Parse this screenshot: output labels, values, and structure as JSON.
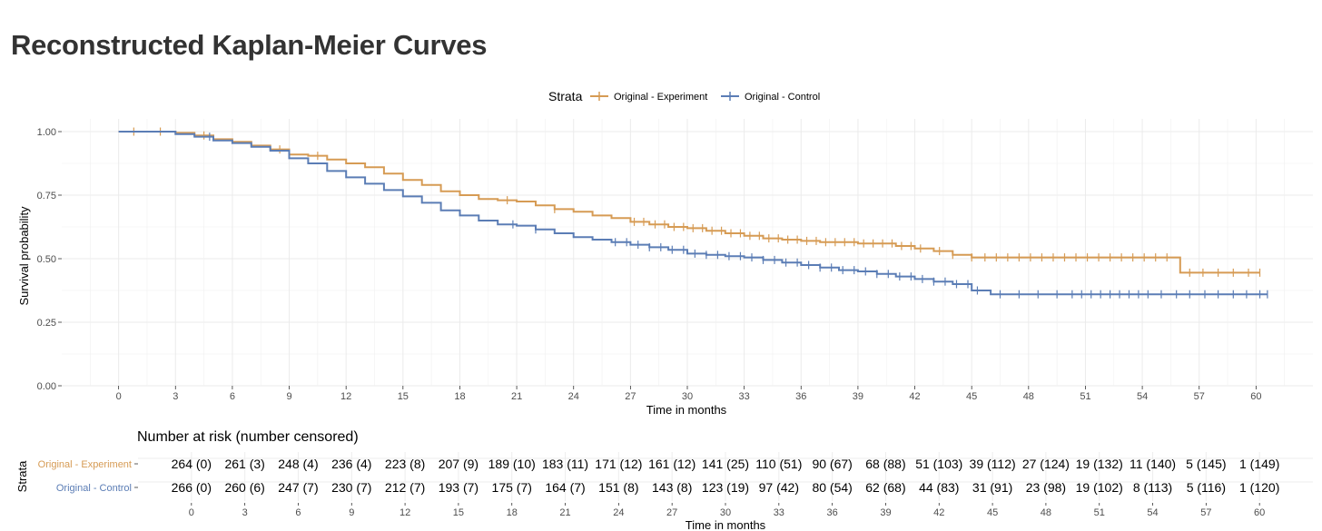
{
  "title": "Reconstructed Kaplan-Meier Curves",
  "chart_data": {
    "type": "line",
    "subtype": "kaplan-meier",
    "title": "Reconstructed Kaplan-Meier Curves",
    "xlabel": "Time in months",
    "ylabel": "Survival probability",
    "xlim": [
      -3,
      63
    ],
    "ylim": [
      0,
      1.05
    ],
    "x_ticks": [
      0,
      3,
      6,
      9,
      12,
      15,
      18,
      21,
      24,
      27,
      30,
      33,
      36,
      39,
      42,
      45,
      48,
      51,
      54,
      57,
      60
    ],
    "x_tick_labels": [
      "0",
      "3",
      "6",
      "9",
      "12",
      "15",
      "18",
      "21",
      "24",
      "27",
      "30",
      "33",
      "36",
      "39",
      "42",
      "45",
      "48",
      "51",
      "54",
      "57",
      "60"
    ],
    "y_ticks": [
      0,
      0.25,
      0.5,
      0.75,
      1.0
    ],
    "y_tick_labels": [
      "0.00",
      "0.25",
      "0.50",
      "0.75",
      "1.00"
    ],
    "legend": {
      "title": "Strata",
      "position": "top"
    },
    "grid": true,
    "series": [
      {
        "name": "Original - Experiment",
        "color": "#d69b54",
        "steps": [
          [
            0,
            1.0
          ],
          [
            3,
            0.995
          ],
          [
            4,
            0.985
          ],
          [
            5,
            0.97
          ],
          [
            6,
            0.96
          ],
          [
            7,
            0.945
          ],
          [
            8,
            0.93
          ],
          [
            9,
            0.91
          ],
          [
            10,
            0.905
          ],
          [
            11,
            0.89
          ],
          [
            12,
            0.875
          ],
          [
            13,
            0.86
          ],
          [
            14,
            0.835
          ],
          [
            15,
            0.81
          ],
          [
            16,
            0.79
          ],
          [
            17,
            0.765
          ],
          [
            18,
            0.75
          ],
          [
            19,
            0.735
          ],
          [
            20,
            0.73
          ],
          [
            21,
            0.725
          ],
          [
            22,
            0.71
          ],
          [
            23,
            0.695
          ],
          [
            24,
            0.685
          ],
          [
            25,
            0.67
          ],
          [
            26,
            0.66
          ],
          [
            27,
            0.645
          ],
          [
            28,
            0.635
          ],
          [
            29,
            0.625
          ],
          [
            30,
            0.62
          ],
          [
            31,
            0.61
          ],
          [
            32,
            0.6
          ],
          [
            33,
            0.59
          ],
          [
            34,
            0.58
          ],
          [
            35,
            0.575
          ],
          [
            36,
            0.57
          ],
          [
            37,
            0.565
          ],
          [
            38,
            0.565
          ],
          [
            39,
            0.56
          ],
          [
            40,
            0.56
          ],
          [
            41,
            0.55
          ],
          [
            42,
            0.54
          ],
          [
            43,
            0.53
          ],
          [
            44,
            0.515
          ],
          [
            45,
            0.505
          ],
          [
            46,
            0.505
          ],
          [
            56,
            0.445
          ],
          [
            60.2,
            0.445
          ]
        ],
        "censor_times": [
          0.8,
          2.2,
          4.5,
          8.5,
          10.5,
          20.5,
          23,
          27.2,
          27.7,
          28.3,
          28.8,
          29.3,
          29.8,
          30.3,
          30.8,
          31.3,
          31.8,
          32.3,
          32.8,
          33.3,
          33.8,
          34.3,
          34.8,
          35.3,
          35.8,
          36.3,
          36.8,
          37.3,
          37.8,
          38.3,
          38.8,
          39.3,
          39.8,
          40.3,
          40.8,
          41.3,
          41.8,
          42.3,
          43.3,
          44,
          45,
          45.7,
          46.3,
          46.9,
          47.5,
          48.1,
          48.7,
          49.3,
          49.9,
          50.5,
          51.1,
          51.7,
          52.3,
          52.9,
          53.5,
          54.1,
          54.7,
          55.3,
          56.5,
          57.2,
          58,
          58.8,
          59.6,
          60.2
        ]
      },
      {
        "name": "Original - Control",
        "color": "#5b7db5",
        "steps": [
          [
            0,
            1.0
          ],
          [
            3,
            0.99
          ],
          [
            4,
            0.98
          ],
          [
            5,
            0.965
          ],
          [
            6,
            0.955
          ],
          [
            7,
            0.94
          ],
          [
            8,
            0.925
          ],
          [
            9,
            0.895
          ],
          [
            10,
            0.875
          ],
          [
            11,
            0.845
          ],
          [
            12,
            0.82
          ],
          [
            13,
            0.795
          ],
          [
            14,
            0.77
          ],
          [
            15,
            0.745
          ],
          [
            16,
            0.72
          ],
          [
            17,
            0.69
          ],
          [
            18,
            0.67
          ],
          [
            19,
            0.65
          ],
          [
            20,
            0.635
          ],
          [
            21,
            0.63
          ],
          [
            22,
            0.615
          ],
          [
            23,
            0.6
          ],
          [
            24,
            0.585
          ],
          [
            25,
            0.575
          ],
          [
            26,
            0.565
          ],
          [
            27,
            0.555
          ],
          [
            28,
            0.545
          ],
          [
            29,
            0.535
          ],
          [
            30,
            0.52
          ],
          [
            31,
            0.515
          ],
          [
            32,
            0.51
          ],
          [
            33,
            0.505
          ],
          [
            34,
            0.495
          ],
          [
            35,
            0.485
          ],
          [
            36,
            0.475
          ],
          [
            37,
            0.465
          ],
          [
            38,
            0.455
          ],
          [
            39,
            0.45
          ],
          [
            40,
            0.44
          ],
          [
            41,
            0.43
          ],
          [
            42,
            0.42
          ],
          [
            43,
            0.41
          ],
          [
            44,
            0.4
          ],
          [
            45,
            0.375
          ],
          [
            46,
            0.36
          ],
          [
            60.6,
            0.36
          ]
        ],
        "censor_times": [
          4.8,
          20.8,
          22,
          26.2,
          26.8,
          27.4,
          28,
          28.6,
          29.2,
          29.8,
          30.4,
          31,
          31.6,
          32.2,
          32.8,
          33.4,
          34,
          34.6,
          35.2,
          35.8,
          36.4,
          37,
          37.6,
          38.2,
          38.8,
          39.4,
          40,
          40.6,
          41.2,
          41.8,
          42.4,
          43,
          43.6,
          44.2,
          44.8,
          45.3,
          46.5,
          47.5,
          48.5,
          49.5,
          50.3,
          50.8,
          51.3,
          51.8,
          52.3,
          52.8,
          53.3,
          53.8,
          54.3,
          55,
          55.8,
          56.5,
          57.3,
          58,
          58.8,
          59.5,
          60.2,
          60.6
        ]
      }
    ]
  },
  "risk_table": {
    "title": "Number at risk (number censored)",
    "ylabel": "Strata",
    "xlabel": "Time in months",
    "rows": [
      {
        "label": "Original - Experiment",
        "color": "#d69b54",
        "cells": [
          "264 (0)",
          "261 (3)",
          "248 (4)",
          "236 (4)",
          "223 (8)",
          "207 (9)",
          "189 (10)",
          "183 (11)",
          "171 (12)",
          "161 (12)",
          "141 (25)",
          "110 (51)",
          "90 (67)",
          "68 (88)",
          "51 (103)",
          "39 (112)",
          "27 (124)",
          "19 (132)",
          "11 (140)",
          "5 (145)",
          "1 (149)"
        ]
      },
      {
        "label": "Original - Control",
        "color": "#5b7db5",
        "cells": [
          "266 (0)",
          "260 (6)",
          "247 (7)",
          "230 (7)",
          "212 (7)",
          "193 (7)",
          "175 (7)",
          "164 (7)",
          "151 (8)",
          "143 (8)",
          "123 (19)",
          "97 (42)",
          "80 (54)",
          "62 (68)",
          "44 (83)",
          "31 (91)",
          "23 (98)",
          "19 (102)",
          "8 (113)",
          "5 (116)",
          "1 (120)"
        ]
      }
    ]
  }
}
